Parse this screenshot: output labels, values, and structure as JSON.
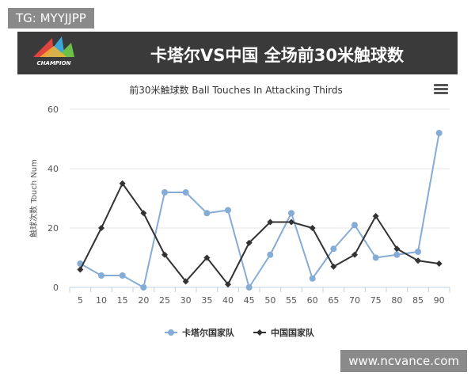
{
  "tag": "TG: MYYJJPP",
  "banner": {
    "logo_text": "CHAMPION",
    "title": "卡塔尔VS中国 全场前30米触球数"
  },
  "watermark": "www.ncvance.com",
  "colors": {
    "series1": "#85acd6",
    "series2": "#333333",
    "grid": "#e6e6e6",
    "banner": "#3a3a3a"
  },
  "chart_data": {
    "type": "line",
    "title": "前30米触球数 Ball Touches In Attacking Thirds",
    "xlabel": "",
    "ylabel": "触球次数 Touch Num",
    "x": [
      5,
      10,
      15,
      20,
      25,
      30,
      35,
      40,
      45,
      50,
      55,
      60,
      65,
      70,
      75,
      80,
      85,
      90
    ],
    "ylim": [
      0,
      60
    ],
    "yticks": [
      0,
      20,
      40,
      60
    ],
    "grid": true,
    "legend": "bottom",
    "series": [
      {
        "name": "卡塔尔国家队",
        "color": "#85acd6",
        "marker": "circle",
        "values": [
          8,
          4,
          4,
          0,
          32,
          32,
          25,
          26,
          0,
          11,
          25,
          3,
          13,
          21,
          10,
          11,
          12,
          52
        ]
      },
      {
        "name": "中国国家队",
        "color": "#333333",
        "marker": "diamond",
        "values": [
          6,
          20,
          35,
          25,
          11,
          2,
          10,
          1,
          15,
          22,
          22,
          20,
          7,
          11,
          24,
          13,
          9,
          8
        ]
      }
    ]
  }
}
